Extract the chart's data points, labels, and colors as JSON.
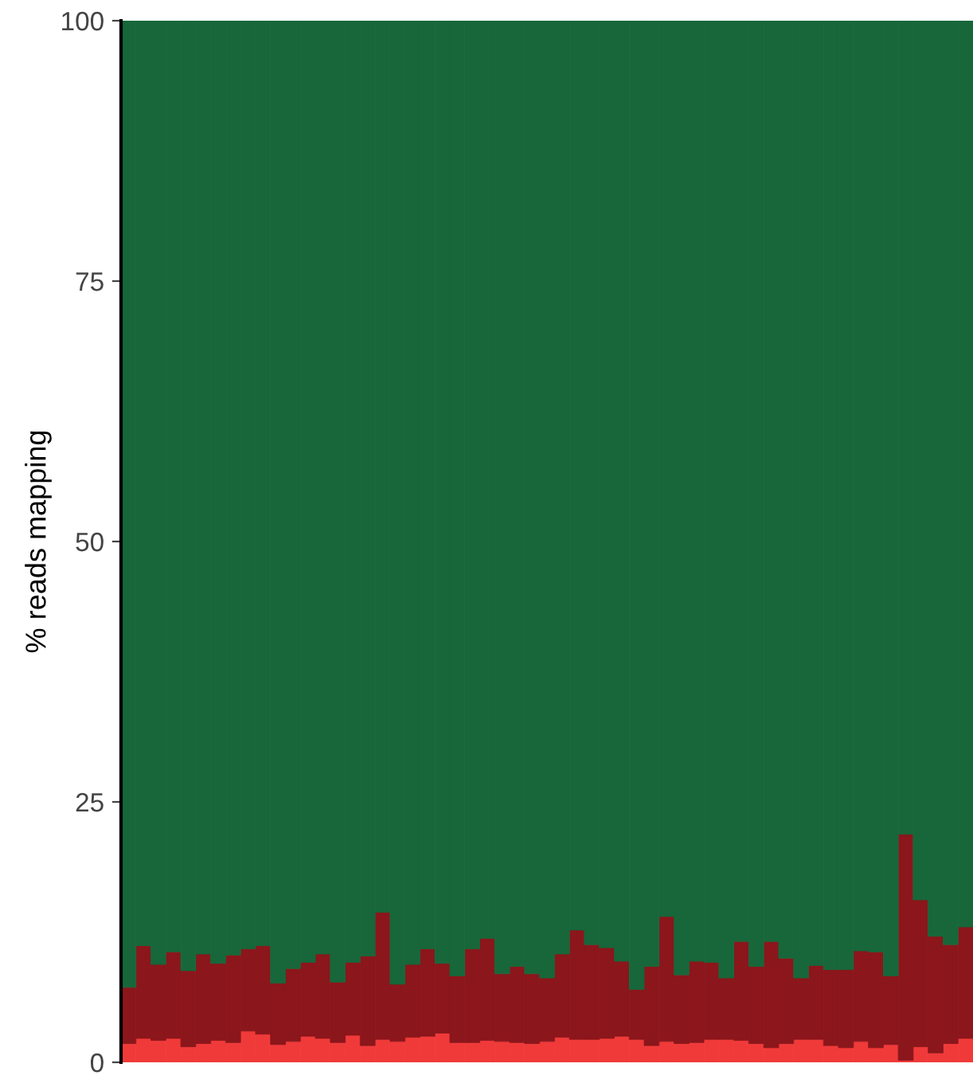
{
  "chart_data": {
    "type": "bar",
    "stacked": true,
    "ylabel": "% reads mapping",
    "ylim": [
      0,
      100
    ],
    "yticks": [
      0,
      25,
      50,
      75,
      100
    ],
    "grid": false,
    "legend": false,
    "tick_labels": "y",
    "categories": [
      null,
      null,
      null,
      null,
      null,
      null,
      null,
      null,
      null,
      null,
      null,
      null,
      null,
      null,
      null,
      null,
      null,
      null,
      null,
      null,
      null,
      null,
      null,
      null,
      null,
      null,
      null,
      null,
      null,
      null,
      null,
      null,
      null,
      null,
      null,
      null,
      null,
      null,
      null,
      null,
      null,
      null,
      null,
      null,
      null,
      null,
      null,
      null,
      null,
      null,
      null,
      null,
      null,
      null,
      null,
      null,
      null
    ],
    "series": [
      {
        "color": "#f03a3a",
        "values": [
          1.8,
          2.3,
          2.1,
          2.3,
          1.5,
          1.8,
          2.1,
          1.9,
          3.0,
          2.7,
          1.7,
          2.0,
          2.5,
          2.3,
          1.9,
          2.6,
          1.6,
          2.2,
          2.0,
          2.4,
          2.5,
          2.8,
          1.9,
          1.9,
          2.1,
          2.0,
          1.9,
          1.8,
          2.0,
          2.4,
          2.2,
          2.2,
          2.3,
          2.5,
          2.2,
          1.6,
          2.0,
          1.8,
          1.9,
          2.2,
          2.2,
          2.1,
          1.8,
          1.4,
          1.8,
          2.2,
          2.2,
          1.6,
          1.4,
          2.0,
          1.4,
          1.7,
          0.2,
          1.5,
          0.9,
          1.8,
          2.3
        ]
      },
      {
        "color": "#8b161b",
        "values": [
          5.4,
          8.9,
          7.3,
          8.3,
          7.3,
          8.6,
          7.4,
          8.4,
          7.9,
          8.5,
          5.9,
          7.0,
          7.1,
          8.1,
          5.8,
          7.0,
          8.6,
          12.2,
          5.5,
          7.0,
          8.4,
          6.7,
          6.4,
          9.0,
          9.8,
          6.5,
          7.3,
          6.7,
          6.1,
          8.0,
          10.5,
          9.1,
          8.7,
          7.2,
          4.8,
          7.6,
          12.0,
          6.6,
          7.8,
          7.4,
          5.9,
          9.5,
          7.4,
          10.2,
          8.2,
          5.9,
          7.1,
          7.3,
          7.5,
          8.7,
          9.2,
          6.6,
          21.7,
          14.1,
          11.2,
          9.5,
          10.7
        ]
      },
      {
        "color": "#17673a",
        "values": [
          92.8,
          88.8,
          90.6,
          89.4,
          91.2,
          89.6,
          90.5,
          89.7,
          89.1,
          88.8,
          92.4,
          91.0,
          90.4,
          89.6,
          92.3,
          90.4,
          89.8,
          85.6,
          92.5,
          90.6,
          89.1,
          90.5,
          91.7,
          89.1,
          88.1,
          91.5,
          90.8,
          91.5,
          91.9,
          89.6,
          87.3,
          88.7,
          89.0,
          90.3,
          93.0,
          90.8,
          86.0,
          91.6,
          90.3,
          90.4,
          91.9,
          88.4,
          90.8,
          88.4,
          90.0,
          91.9,
          90.7,
          91.1,
          91.1,
          89.3,
          89.4,
          91.7,
          78.1,
          84.4,
          87.9,
          88.7,
          87.0
        ]
      }
    ]
  }
}
